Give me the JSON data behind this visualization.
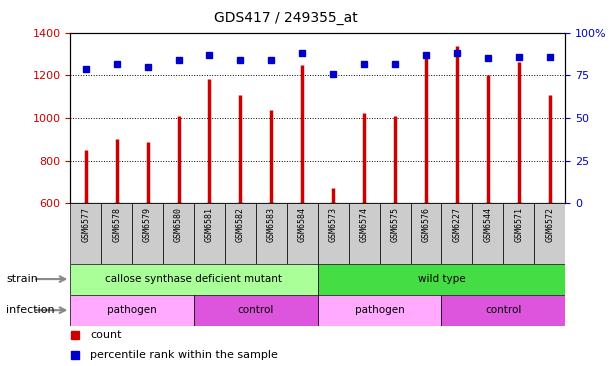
{
  "title": "GDS417 / 249355_at",
  "samples": [
    "GSM6577",
    "GSM6578",
    "GSM6579",
    "GSM6580",
    "GSM6581",
    "GSM6582",
    "GSM6583",
    "GSM6584",
    "GSM6573",
    "GSM6574",
    "GSM6575",
    "GSM6576",
    "GSM6227",
    "GSM6544",
    "GSM6571",
    "GSM6572"
  ],
  "counts": [
    850,
    900,
    885,
    1010,
    1185,
    1110,
    1040,
    1250,
    670,
    1025,
    1010,
    1295,
    1340,
    1200,
    1265,
    1110
  ],
  "percentiles": [
    79,
    82,
    80,
    84,
    87,
    84,
    84,
    88,
    76,
    82,
    82,
    87,
    88,
    85,
    86,
    86
  ],
  "ylim_left": [
    600,
    1400
  ],
  "ylim_right": [
    0,
    100
  ],
  "yticks_left": [
    600,
    800,
    1000,
    1200,
    1400
  ],
  "yticks_right": [
    0,
    25,
    50,
    75,
    100
  ],
  "bar_color": "#cc0000",
  "dot_color": "#0000cc",
  "strain_groups": [
    {
      "label": "callose synthase deficient mutant",
      "start": 0,
      "end": 8,
      "color": "#aaff99"
    },
    {
      "label": "wild type",
      "start": 8,
      "end": 16,
      "color": "#44dd44"
    }
  ],
  "infection_groups": [
    {
      "label": "pathogen",
      "start": 0,
      "end": 4,
      "color": "#ffaaff"
    },
    {
      "label": "control",
      "start": 4,
      "end": 8,
      "color": "#dd55dd"
    },
    {
      "label": "pathogen",
      "start": 8,
      "end": 12,
      "color": "#ffaaff"
    },
    {
      "label": "control",
      "start": 12,
      "end": 16,
      "color": "#dd55dd"
    }
  ],
  "legend_items": [
    {
      "label": "count",
      "color": "#cc0000"
    },
    {
      "label": "percentile rank within the sample",
      "color": "#0000cc"
    }
  ],
  "tick_color_left": "#cc0000",
  "tick_color_right": "#0000cc",
  "label_box_color": "#cccccc",
  "arrow_color": "#888888"
}
